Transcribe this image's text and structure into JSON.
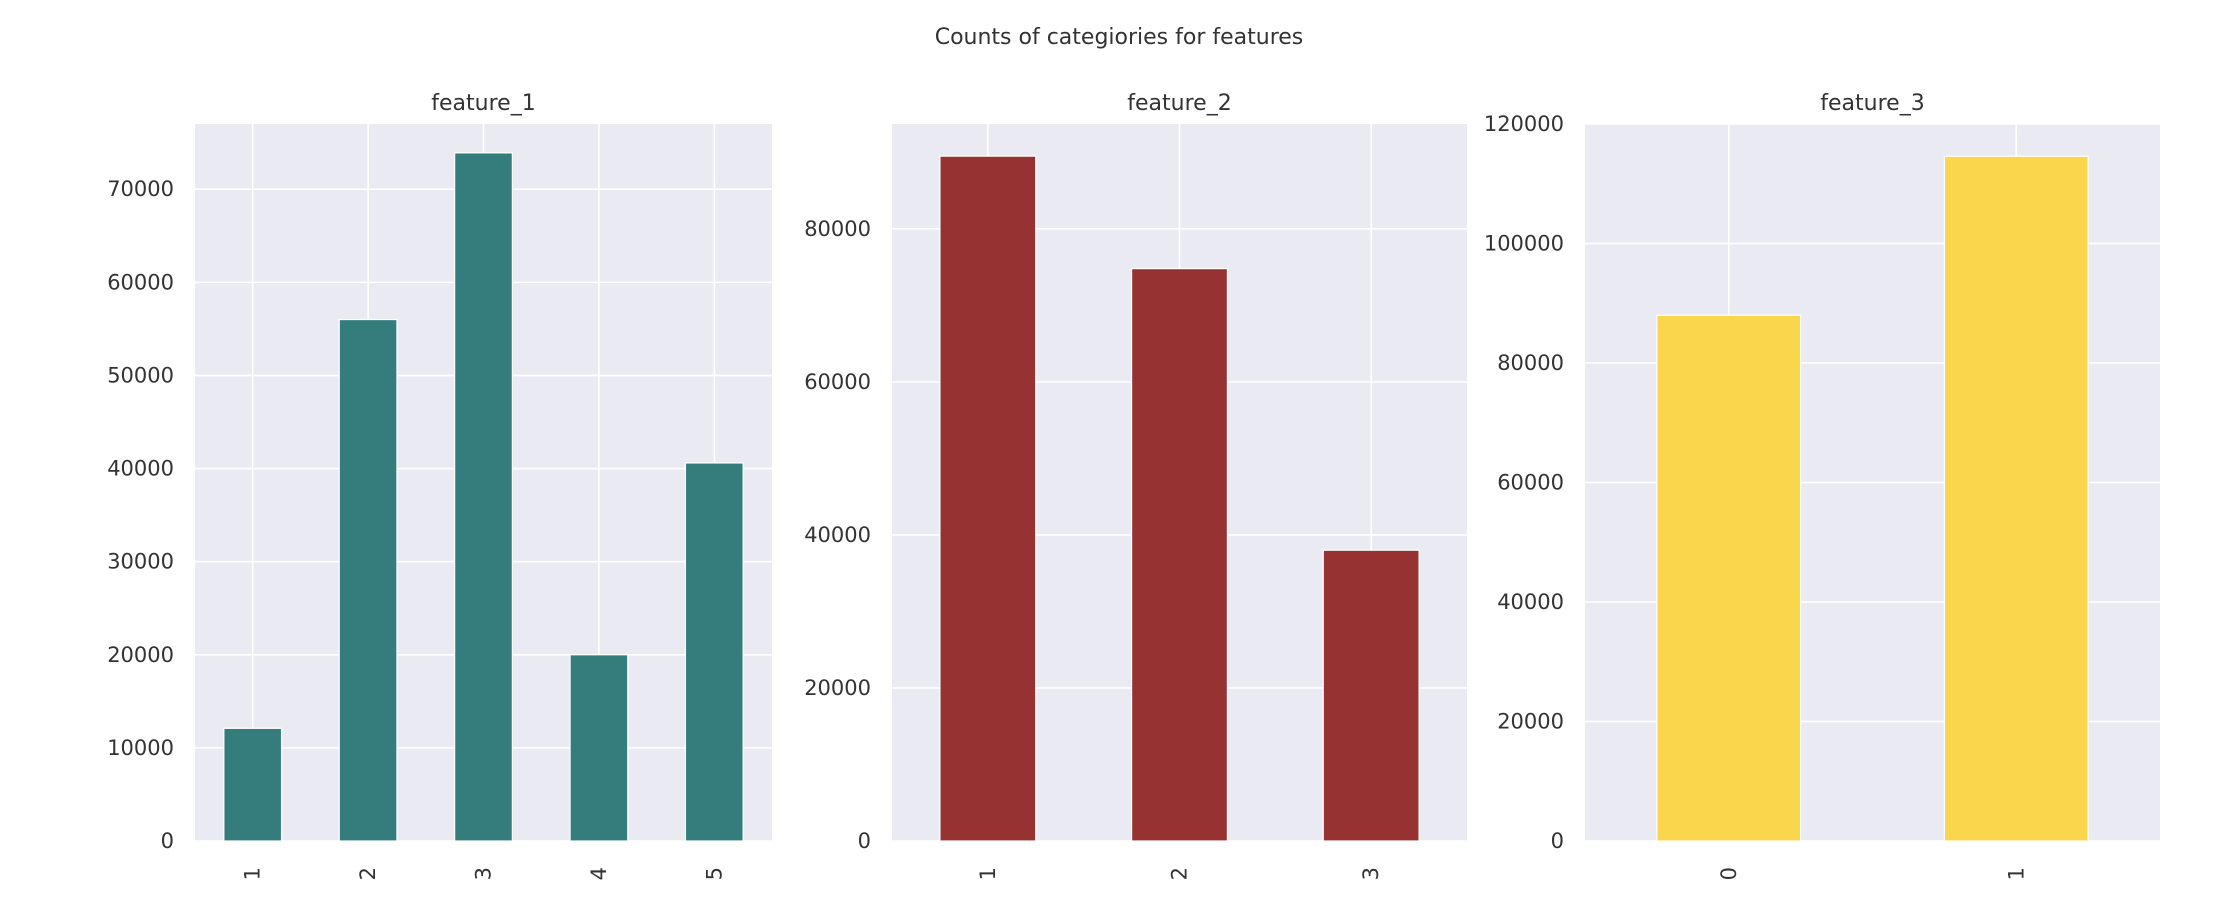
{
  "title": "Counts of categiories for features",
  "chart_data": [
    {
      "type": "bar",
      "title": "feature_1",
      "categories": [
        "1",
        "2",
        "3",
        "4",
        "5"
      ],
      "values": [
        12100,
        56000,
        73900,
        20000,
        40600
      ],
      "ylim": [
        0,
        77000
      ],
      "yticks": [
        "0",
        "10000",
        "20000",
        "30000",
        "40000",
        "50000",
        "60000",
        "70000"
      ],
      "ytick_values": [
        0,
        10000,
        20000,
        30000,
        40000,
        50000,
        60000,
        70000
      ],
      "color": "#347d7c",
      "grid": true,
      "xlabel": "",
      "ylabel": ""
    },
    {
      "type": "bar",
      "title": "feature_2",
      "categories": [
        "1",
        "2",
        "3"
      ],
      "values": [
        89500,
        74800,
        38000
      ],
      "ylim": [
        0,
        93700
      ],
      "yticks": [
        "0",
        "20000",
        "40000",
        "60000",
        "80000"
      ],
      "ytick_values": [
        0,
        20000,
        40000,
        60000,
        80000
      ],
      "color": "#963231",
      "grid": true,
      "xlabel": "",
      "ylabel": ""
    },
    {
      "type": "bar",
      "title": "feature_3",
      "categories": [
        "0",
        "1"
      ],
      "values": [
        88000,
        114600
      ],
      "ylim": [
        0,
        120000
      ],
      "yticks": [
        "0",
        "20000",
        "40000",
        "60000",
        "80000",
        "100000",
        "120000"
      ],
      "ytick_values": [
        0,
        20000,
        40000,
        60000,
        80000,
        100000,
        120000
      ],
      "color": "#f9d64b",
      "grid": true,
      "xlabel": "",
      "ylabel": ""
    }
  ]
}
